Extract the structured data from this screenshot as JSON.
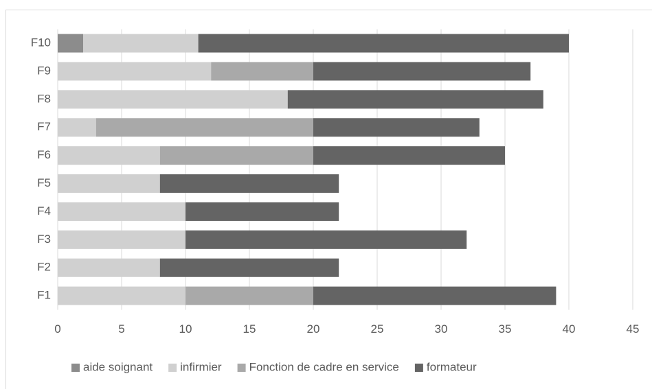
{
  "chart_data": {
    "type": "stacked-barh",
    "categories": [
      "F1",
      "F2",
      "F3",
      "F4",
      "F5",
      "F6",
      "F7",
      "F8",
      "F9",
      "F10"
    ],
    "series": [
      {
        "name": "aide soignant",
        "color": "#8c8c8c",
        "values": [
          0,
          0,
          0,
          0,
          0,
          0,
          0,
          0,
          0,
          2
        ]
      },
      {
        "name": "infirmier",
        "color": "#d0d0d0",
        "values": [
          10,
          8,
          10,
          10,
          8,
          8,
          3,
          18,
          12,
          9
        ]
      },
      {
        "name": "Fonction de cadre en service",
        "color": "#a9a9a9",
        "values": [
          10,
          0,
          0,
          0,
          0,
          12,
          17,
          0,
          8,
          0
        ]
      },
      {
        "name": "formateur",
        "color": "#646464",
        "values": [
          19,
          14,
          22,
          12,
          14,
          15,
          13,
          20,
          17,
          29
        ]
      }
    ],
    "xlim": [
      0,
      45
    ],
    "xticks": [
      0,
      5,
      10,
      15,
      20,
      25,
      30,
      35,
      40,
      45
    ],
    "grid": true,
    "legend": "bottom"
  }
}
